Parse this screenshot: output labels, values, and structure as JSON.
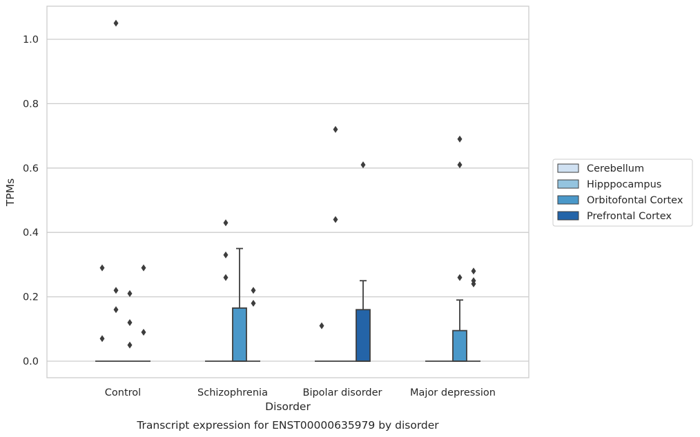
{
  "chart_data": {
    "type": "box",
    "xlabel": "Disorder",
    "ylabel": "TPMs",
    "caption": "Transcript expression for ENST00000635979 by disorder",
    "ylim": [
      -0.05,
      1.1
    ],
    "yticks": [
      "0.0",
      "0.2",
      "0.4",
      "0.6",
      "0.8",
      "1.0"
    ],
    "grid": true,
    "legend_position": "right",
    "categories": [
      "Control",
      "Schizophrenia",
      "Bipolar disorder",
      "Major depression"
    ],
    "series": [
      {
        "name": "Cerebellum",
        "color": "#d0e1f2"
      },
      {
        "name": "Hipppocampus",
        "color": "#94c4df"
      },
      {
        "name": "Orbitofontal Cortex",
        "color": "#4a98c9"
      },
      {
        "name": "Prefrontal Cortex",
        "color": "#2464a8"
      }
    ],
    "boxes": [
      {
        "category": "Control",
        "series": "Cerebellum",
        "q1": 0,
        "median": 0,
        "q3": 0,
        "whisker_low": 0,
        "whisker_high": 0,
        "outliers": [
          0.29,
          0.07
        ]
      },
      {
        "category": "Control",
        "series": "Hipppocampus",
        "q1": 0,
        "median": 0,
        "q3": 0,
        "whisker_low": 0,
        "whisker_high": 0,
        "outliers": [
          1.05,
          0.22,
          0.16
        ]
      },
      {
        "category": "Control",
        "series": "Orbitofontal Cortex",
        "q1": 0,
        "median": 0,
        "q3": 0,
        "whisker_low": 0,
        "whisker_high": 0,
        "outliers": [
          0.21,
          0.12,
          0.05
        ]
      },
      {
        "category": "Control",
        "series": "Prefrontal Cortex",
        "q1": 0,
        "median": 0,
        "q3": 0,
        "whisker_low": 0,
        "whisker_high": 0,
        "outliers": [
          0.29,
          0.09
        ]
      },
      {
        "category": "Schizophrenia",
        "series": "Cerebellum",
        "q1": 0,
        "median": 0,
        "q3": 0,
        "whisker_low": 0,
        "whisker_high": 0,
        "outliers": []
      },
      {
        "category": "Schizophrenia",
        "series": "Hipppocampus",
        "q1": 0,
        "median": 0,
        "q3": 0,
        "whisker_low": 0,
        "whisker_high": 0,
        "outliers": [
          0.43,
          0.33,
          0.26
        ]
      },
      {
        "category": "Schizophrenia",
        "series": "Orbitofontal Cortex",
        "q1": 0,
        "median": 0,
        "q3": 0.165,
        "whisker_low": 0,
        "whisker_high": 0.35,
        "outliers": []
      },
      {
        "category": "Schizophrenia",
        "series": "Prefrontal Cortex",
        "q1": 0,
        "median": 0,
        "q3": 0,
        "whisker_low": 0,
        "whisker_high": 0,
        "outliers": [
          0.22,
          0.18
        ]
      },
      {
        "category": "Bipolar disorder",
        "series": "Cerebellum",
        "q1": 0,
        "median": 0,
        "q3": 0,
        "whisker_low": 0,
        "whisker_high": 0,
        "outliers": [
          0.11
        ]
      },
      {
        "category": "Bipolar disorder",
        "series": "Hipppocampus",
        "q1": 0,
        "median": 0,
        "q3": 0,
        "whisker_low": 0,
        "whisker_high": 0,
        "outliers": [
          0.72,
          0.44
        ]
      },
      {
        "category": "Bipolar disorder",
        "series": "Orbitofontal Cortex",
        "q1": 0,
        "median": 0,
        "q3": 0,
        "whisker_low": 0,
        "whisker_high": 0,
        "outliers": []
      },
      {
        "category": "Bipolar disorder",
        "series": "Prefrontal Cortex",
        "q1": 0,
        "median": 0,
        "q3": 0.16,
        "whisker_low": 0,
        "whisker_high": 0.25,
        "outliers": [
          0.61
        ]
      },
      {
        "category": "Major depression",
        "series": "Cerebellum",
        "q1": 0,
        "median": 0,
        "q3": 0,
        "whisker_low": 0,
        "whisker_high": 0,
        "outliers": []
      },
      {
        "category": "Major depression",
        "series": "Hipppocampus",
        "q1": 0,
        "median": 0,
        "q3": 0,
        "whisker_low": 0,
        "whisker_high": 0,
        "outliers": []
      },
      {
        "category": "Major depression",
        "series": "Orbitofontal Cortex",
        "q1": 0,
        "median": 0,
        "q3": 0.095,
        "whisker_low": 0,
        "whisker_high": 0.19,
        "outliers": [
          0.69,
          0.61,
          0.26
        ]
      },
      {
        "category": "Major depression",
        "series": "Prefrontal Cortex",
        "q1": 0,
        "median": 0,
        "q3": 0,
        "whisker_low": 0,
        "whisker_high": 0,
        "outliers": [
          0.28,
          0.25,
          0.24
        ]
      }
    ]
  }
}
